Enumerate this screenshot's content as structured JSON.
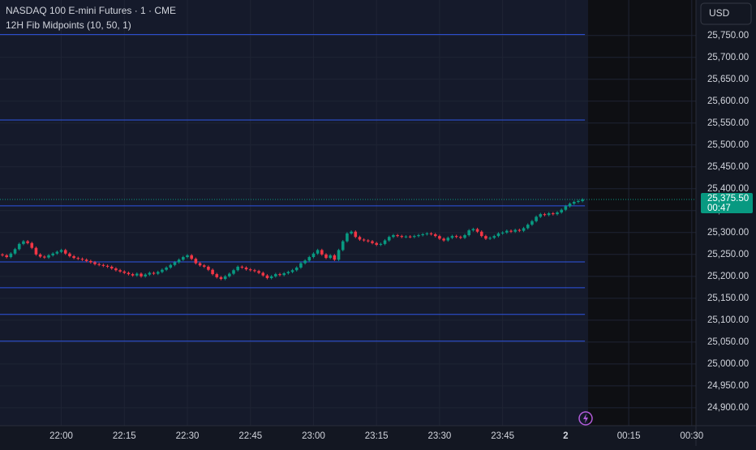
{
  "chart_data": {
    "type": "candlestick",
    "title": "NASDAQ 100 E-mini Futures · 1 · CME",
    "subtitle": "12H Fib Midpoints (10, 50, 1)",
    "currency": "USD",
    "countdown": "00:47",
    "last_label": "25,375.50",
    "up_color": "#089981",
    "down_color": "#f23645",
    "level_color": "#2f55e4",
    "levels": [
      25752,
      25557,
      25361,
      25233,
      25174,
      25113,
      25052
    ],
    "grid": true,
    "ylim": [
      24859,
      25831
    ],
    "yticks": [
      {
        "value": 24900,
        "label": "24,900.00"
      },
      {
        "value": 24950,
        "label": "24,950.00"
      },
      {
        "value": 25000,
        "label": "25,000.00"
      },
      {
        "value": 25050,
        "label": "25,050.00"
      },
      {
        "value": 25100,
        "label": "25,100.00"
      },
      {
        "value": 25150,
        "label": "25,150.00"
      },
      {
        "value": 25200,
        "label": "25,200.00"
      },
      {
        "value": 25250,
        "label": "25,250.00"
      },
      {
        "value": 25300,
        "label": "25,300.00"
      },
      {
        "value": 25350,
        "label": "25,350.00"
      },
      {
        "value": 25400,
        "label": "25,400.00"
      },
      {
        "value": 25450,
        "label": "25,450.00"
      },
      {
        "value": 25500,
        "label": "25,500.00"
      },
      {
        "value": 25550,
        "label": "25,550.00"
      },
      {
        "value": 25600,
        "label": "25,600.00"
      },
      {
        "value": 25650,
        "label": "25,650.00"
      },
      {
        "value": 25700,
        "label": "25,700.00"
      },
      {
        "value": 25750,
        "label": "25,750.00"
      }
    ],
    "xlim": [
      "21:46",
      "00:31"
    ],
    "xticks": [
      "22:00",
      "22:15",
      "22:30",
      "22:45",
      "23:00",
      "23:15",
      "23:30",
      "23:45",
      {
        "value": "00:00",
        "label": "2"
      },
      "00:15",
      "00:30"
    ],
    "x": [
      "21:46",
      "21:47",
      "21:48",
      "21:49",
      "21:50",
      "21:51",
      "21:52",
      "21:53",
      "21:54",
      "21:55",
      "21:56",
      "21:57",
      "21:58",
      "21:59",
      "22:00",
      "22:01",
      "22:02",
      "22:03",
      "22:04",
      "22:05",
      "22:06",
      "22:07",
      "22:08",
      "22:09",
      "22:10",
      "22:11",
      "22:12",
      "22:13",
      "22:14",
      "22:15",
      "22:16",
      "22:17",
      "22:18",
      "22:19",
      "22:20",
      "22:21",
      "22:22",
      "22:23",
      "22:24",
      "22:25",
      "22:26",
      "22:27",
      "22:28",
      "22:29",
      "22:30",
      "22:31",
      "22:32",
      "22:33",
      "22:34",
      "22:35",
      "22:36",
      "22:37",
      "22:38",
      "22:39",
      "22:40",
      "22:41",
      "22:42",
      "22:43",
      "22:44",
      "22:45",
      "22:46",
      "22:47",
      "22:48",
      "22:49",
      "22:50",
      "22:51",
      "22:52",
      "22:53",
      "22:54",
      "22:55",
      "22:56",
      "22:57",
      "22:58",
      "22:59",
      "23:00",
      "23:01",
      "23:02",
      "23:03",
      "23:04",
      "23:05",
      "23:06",
      "23:07",
      "23:08",
      "23:09",
      "23:10",
      "23:11",
      "23:12",
      "23:13",
      "23:14",
      "23:15",
      "23:16",
      "23:17",
      "23:18",
      "23:19",
      "23:20",
      "23:21",
      "23:22",
      "23:23",
      "23:24",
      "23:25",
      "23:26",
      "23:27",
      "23:28",
      "23:29",
      "23:30",
      "23:31",
      "23:32",
      "23:33",
      "23:34",
      "23:35",
      "23:36",
      "23:37",
      "23:38",
      "23:39",
      "23:40",
      "23:41",
      "23:42",
      "23:43",
      "23:44",
      "23:45",
      "23:46",
      "23:47",
      "23:48",
      "23:49",
      "23:50",
      "23:51",
      "23:52",
      "23:53",
      "23:54",
      "23:55",
      "23:56",
      "23:57",
      "23:58",
      "23:59",
      "00:00",
      "00:01",
      "00:02",
      "00:03",
      "00:04"
    ],
    "open": [
      25250,
      25248,
      25244,
      25252,
      25262,
      25274,
      25280,
      25276,
      25265,
      25250,
      25245,
      25243,
      25248,
      25252,
      25256,
      25260,
      25252,
      25246,
      25242,
      25240,
      25238,
      25235,
      25232,
      25228,
      25226,
      25224,
      25222,
      25218,
      25214,
      25211,
      25208,
      25205,
      25202,
      25206,
      25200,
      25204,
      25208,
      25206,
      25210,
      25215,
      25220,
      25226,
      25232,
      25238,
      25244,
      25248,
      25240,
      25230,
      25225,
      25222,
      25215,
      25205,
      25198,
      25194,
      25200,
      25206,
      25214,
      25222,
      25220,
      25216,
      25214,
      25212,
      25208,
      25202,
      25196,
      25200,
      25205,
      25203,
      25207,
      25210,
      25214,
      25220,
      25230,
      25236,
      25244,
      25252,
      25260,
      25250,
      25242,
      25248,
      25238,
      25260,
      25280,
      25298,
      25302,
      25290,
      25284,
      25282,
      25280,
      25276,
      25272,
      25274,
      25282,
      25290,
      25294,
      25292,
      25290,
      25291,
      25290,
      25292,
      25294,
      25296,
      25298,
      25296,
      25292,
      25286,
      25282,
      25288,
      25292,
      25290,
      25288,
      25294,
      25305,
      25308,
      25302,
      25292,
      25286,
      25288,
      25292,
      25298,
      25300,
      25304,
      25302,
      25306,
      25304,
      25310,
      25318,
      25326,
      25336,
      25342,
      25340,
      25344,
      25342,
      25346,
      25352,
      25360,
      25366,
      25370,
      25372
    ],
    "high": [
      25253,
      25251,
      25255,
      25265,
      25277,
      25283,
      25283,
      25279,
      25268,
      25253,
      25248,
      25251,
      25255,
      25259,
      25263,
      25263,
      25255,
      25249,
      25245,
      25243,
      25241,
      25238,
      25235,
      25231,
      25229,
      25227,
      25225,
      25221,
      25217,
      25214,
      25211,
      25208,
      25209,
      25209,
      25207,
      25211,
      25211,
      25213,
      25218,
      25223,
      25229,
      25235,
      25241,
      25247,
      25251,
      25251,
      25243,
      25233,
      25228,
      25225,
      25218,
      25208,
      25201,
      25203,
      25209,
      25217,
      25225,
      25225,
      25223,
      25219,
      25217,
      25215,
      25211,
      25205,
      25203,
      25208,
      25208,
      25210,
      25213,
      25217,
      25223,
      25233,
      25239,
      25247,
      25255,
      25263,
      25263,
      25253,
      25251,
      25251,
      25263,
      25283,
      25301,
      25305,
      25305,
      25293,
      25287,
      25285,
      25283,
      25279,
      25277,
      25285,
      25293,
      25297,
      25297,
      25295,
      25294,
      25294,
      25295,
      25297,
      25299,
      25301,
      25301,
      25299,
      25295,
      25289,
      25291,
      25295,
      25295,
      25293,
      25297,
      25308,
      25311,
      25311,
      25305,
      25295,
      25291,
      25295,
      25301,
      25303,
      25307,
      25307,
      25309,
      25309,
      25313,
      25321,
      25329,
      25339,
      25345,
      25345,
      25347,
      25347,
      25349,
      25355,
      25363,
      25369,
      25373,
      25375,
      25378.5
    ],
    "low": [
      25245,
      25241,
      25241,
      25249,
      25259,
      25271,
      25273,
      25262,
      25247,
      25242,
      25240,
      25240,
      25245,
      25249,
      25253,
      25249,
      25243,
      25239,
      25237,
      25235,
      25232,
      25229,
      25225,
      25223,
      25221,
      25219,
      25215,
      25211,
      25208,
      25205,
      25202,
      25199,
      25199,
      25197,
      25197,
      25201,
      25203,
      25203,
      25207,
      25212,
      25217,
      25223,
      25229,
      25235,
      25241,
      25237,
      25227,
      25222,
      25219,
      25212,
      25202,
      25195,
      25191,
      25191,
      25197,
      25203,
      25211,
      25217,
      25213,
      25211,
      25209,
      25205,
      25199,
      25193,
      25193,
      25197,
      25200,
      25200,
      25204,
      25207,
      25211,
      25217,
      25227,
      25233,
      25241,
      25249,
      25247,
      25239,
      25239,
      25235,
      25235,
      25257,
      25277,
      25295,
      25287,
      25281,
      25279,
      25277,
      25273,
      25269,
      25269,
      25271,
      25279,
      25287,
      25289,
      25287,
      25287,
      25287,
      25287,
      25289,
      25291,
      25293,
      25293,
      25289,
      25283,
      25279,
      25279,
      25285,
      25287,
      25285,
      25285,
      25291,
      25302,
      25299,
      25289,
      25283,
      25283,
      25285,
      25289,
      25295,
      25297,
      25299,
      25299,
      25301,
      25301,
      25307,
      25315,
      25323,
      25333,
      25337,
      25337,
      25339,
      25339,
      25343,
      25349,
      25357,
      25363,
      25367,
      25369
    ],
    "close": [
      25248,
      25244,
      25252,
      25262,
      25274,
      25280,
      25276,
      25265,
      25250,
      25245,
      25243,
      25248,
      25252,
      25256,
      25260,
      25252,
      25246,
      25242,
      25240,
      25238,
      25235,
      25232,
      25228,
      25226,
      25224,
      25222,
      25218,
      25214,
      25211,
      25208,
      25205,
      25202,
      25206,
      25200,
      25204,
      25208,
      25206,
      25210,
      25215,
      25220,
      25226,
      25232,
      25238,
      25244,
      25248,
      25240,
      25230,
      25225,
      25222,
      25215,
      25205,
      25198,
      25194,
      25200,
      25206,
      25214,
      25222,
      25220,
      25216,
      25214,
      25212,
      25208,
      25202,
      25196,
      25200,
      25205,
      25203,
      25207,
      25210,
      25214,
      25220,
      25230,
      25236,
      25244,
      25252,
      25260,
      25250,
      25242,
      25248,
      25238,
      25260,
      25280,
      25298,
      25302,
      25290,
      25284,
      25282,
      25280,
      25276,
      25272,
      25274,
      25282,
      25290,
      25294,
      25292,
      25290,
      25291,
      25290,
      25292,
      25294,
      25296,
      25298,
      25296,
      25292,
      25286,
      25282,
      25288,
      25292,
      25290,
      25288,
      25294,
      25305,
      25308,
      25302,
      25292,
      25286,
      25288,
      25292,
      25298,
      25300,
      25304,
      25302,
      25306,
      25304,
      25310,
      25318,
      25326,
      25336,
      25342,
      25340,
      25344,
      25342,
      25346,
      25352,
      25360,
      25366,
      25370,
      25372,
      25375.5
    ]
  }
}
